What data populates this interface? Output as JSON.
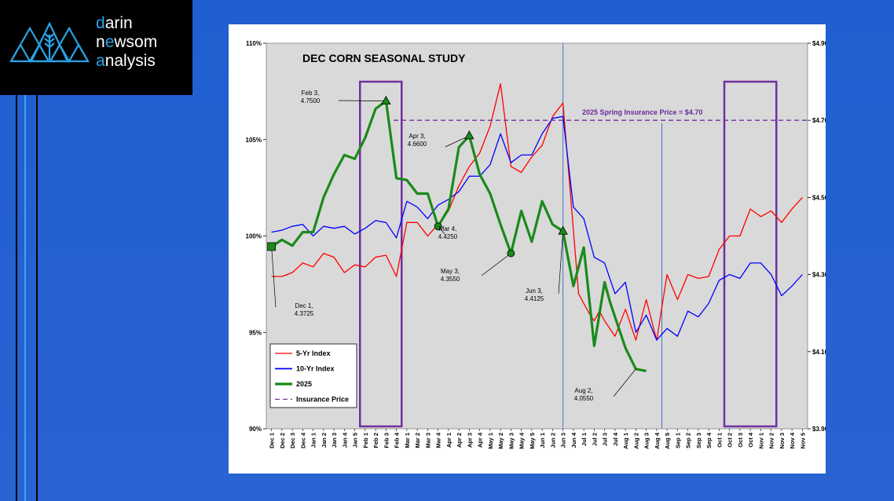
{
  "logo": {
    "line1_accent": "d",
    "line1_rest": "arin",
    "line2_start": "n",
    "line2_accent": "e",
    "line2_rest": "wsom",
    "line3_accent": "a",
    "line3_rest": "nalysis"
  },
  "colors": {
    "five_yr": "#ff0000",
    "ten_yr": "#0000ff",
    "y2025": "#1a8a1a",
    "insurance": "#7030a0",
    "plot_bg": "#d9d9d9",
    "background": "#2a63d2"
  },
  "chart_data": {
    "type": "line",
    "title": "DEC CORN SEASONAL STUDY",
    "x": [
      "Dec 1",
      "Dec 2",
      "Dec 3",
      "Dec 4",
      "Jan 1",
      "Jan 2",
      "Jan 3",
      "Jan 4",
      "Jan 5",
      "Feb 1",
      "Feb 2",
      "Feb 3",
      "Feb 4",
      "Mar 1",
      "Mar 2",
      "Mar 3",
      "Mar 4",
      "Apr 1",
      "Apr 2",
      "Apr 3",
      "Apr 4",
      "May 1",
      "May 2",
      "May 3",
      "May 4",
      "May 5",
      "Jun 1",
      "Jun 2",
      "Jun 3",
      "Jun 4",
      "Jul 1",
      "Jul 2",
      "Jul 3",
      "Jul 4",
      "Aug 1",
      "Aug 2",
      "Aug 3",
      "Aug 4",
      "Aug 5",
      "Sep 1",
      "Sep 2",
      "Sep 3",
      "Sep 4",
      "Oct 1",
      "Oct 2",
      "Oct 3",
      "Oct 4",
      "Nov 1",
      "Nov 2",
      "Nov 3",
      "Nov 4",
      "Nov 5"
    ],
    "left_axis": {
      "ticks": [
        "90%",
        "95%",
        "100%",
        "105%",
        "110%"
      ],
      "range": [
        90,
        110
      ]
    },
    "right_axis": {
      "ticks": [
        "$3.90",
        "$4.10",
        "$4.30",
        "$4.50",
        "$4.70",
        "$4.90"
      ],
      "range": [
        3.9,
        4.9
      ]
    },
    "series": [
      {
        "name": "5-Yr Index",
        "axis": "left",
        "color": "#ff0000",
        "points": [
          [
            0,
            97.9
          ],
          [
            1,
            97.9
          ],
          [
            2,
            98.1
          ],
          [
            3,
            98.6
          ],
          [
            4,
            98.4
          ],
          [
            5,
            99.1
          ],
          [
            6,
            98.9
          ],
          [
            7,
            98.1
          ],
          [
            8,
            98.5
          ],
          [
            9,
            98.4
          ],
          [
            10,
            98.9
          ],
          [
            11,
            99.0
          ],
          [
            12,
            97.9
          ],
          [
            13,
            100.7
          ],
          [
            14,
            100.7
          ],
          [
            15,
            100.0
          ],
          [
            16,
            100.6
          ],
          [
            17,
            101.3
          ],
          [
            18,
            102.6
          ],
          [
            19,
            103.6
          ],
          [
            20,
            104.3
          ],
          [
            21,
            105.7
          ],
          [
            22,
            107.9
          ],
          [
            23,
            103.6
          ],
          [
            24,
            103.3
          ],
          [
            25,
            104.1
          ],
          [
            26,
            104.7
          ],
          [
            27,
            106.2
          ],
          [
            28,
            106.9
          ],
          [
            29,
            100.3
          ],
          [
            29.5,
            97.0
          ],
          [
            30,
            96.5
          ],
          [
            30.5,
            96.0
          ],
          [
            31,
            95.6
          ],
          [
            31.5,
            96.1
          ],
          [
            32,
            95.6
          ],
          [
            33,
            94.8
          ],
          [
            34,
            96.2
          ],
          [
            35,
            94.6
          ],
          [
            36,
            96.7
          ],
          [
            37,
            94.6
          ],
          [
            38,
            98.0
          ],
          [
            39,
            96.7
          ],
          [
            40,
            98.0
          ],
          [
            41,
            97.8
          ],
          [
            42,
            97.9
          ],
          [
            43,
            99.3
          ],
          [
            44,
            100.0
          ],
          [
            45,
            100.0
          ],
          [
            46,
            101.4
          ],
          [
            47,
            101.0
          ],
          [
            48,
            101.3
          ],
          [
            49,
            100.7
          ],
          [
            50,
            101.4
          ],
          [
            51,
            102.0
          ]
        ]
      },
      {
        "name": "10-Yr Index",
        "axis": "left",
        "color": "#0000ff",
        "points": [
          [
            0,
            100.2
          ],
          [
            1,
            100.3
          ],
          [
            2,
            100.5
          ],
          [
            3,
            100.6
          ],
          [
            4,
            100.0
          ],
          [
            5,
            100.5
          ],
          [
            6,
            100.4
          ],
          [
            7,
            100.5
          ],
          [
            8,
            100.1
          ],
          [
            9,
            100.4
          ],
          [
            10,
            100.8
          ],
          [
            11,
            100.7
          ],
          [
            12,
            99.9
          ],
          [
            13,
            101.8
          ],
          [
            14,
            101.5
          ],
          [
            15,
            100.9
          ],
          [
            16,
            101.6
          ],
          [
            17,
            101.9
          ],
          [
            18,
            102.3
          ],
          [
            19,
            103.1
          ],
          [
            20,
            103.1
          ],
          [
            21,
            103.7
          ],
          [
            22,
            105.3
          ],
          [
            23,
            103.8
          ],
          [
            24,
            104.2
          ],
          [
            25,
            104.2
          ],
          [
            26,
            105.3
          ],
          [
            27,
            106.1
          ],
          [
            28,
            106.2
          ],
          [
            29,
            101.5
          ],
          [
            30,
            100.9
          ],
          [
            31,
            98.9
          ],
          [
            32,
            98.6
          ],
          [
            33,
            97.0
          ],
          [
            34,
            97.6
          ],
          [
            35,
            95.0
          ],
          [
            36,
            95.9
          ],
          [
            37,
            94.6
          ],
          [
            38,
            95.2
          ],
          [
            39,
            94.8
          ],
          [
            40,
            96.1
          ],
          [
            41,
            95.8
          ],
          [
            42,
            96.5
          ],
          [
            43,
            97.7
          ],
          [
            44,
            98.0
          ],
          [
            45,
            97.8
          ],
          [
            46,
            98.6
          ],
          [
            47,
            98.6
          ],
          [
            48,
            98.0
          ],
          [
            49,
            96.9
          ],
          [
            50,
            97.4
          ],
          [
            51,
            98.0
          ]
        ]
      },
      {
        "name": "2025",
        "axis": "right",
        "color": "#1a8a1a",
        "points": [
          [
            0,
            4.3725
          ],
          [
            1,
            4.39
          ],
          [
            2,
            4.375
          ],
          [
            3,
            4.41
          ],
          [
            4,
            4.41
          ],
          [
            5,
            4.5
          ],
          [
            6,
            4.56
          ],
          [
            7,
            4.61
          ],
          [
            8,
            4.6
          ],
          [
            9,
            4.655
          ],
          [
            10,
            4.73
          ],
          [
            11,
            4.75
          ],
          [
            12,
            4.55
          ],
          [
            13,
            4.545
          ],
          [
            14,
            4.51
          ],
          [
            15,
            4.51
          ],
          [
            16,
            4.425
          ],
          [
            17,
            4.47
          ],
          [
            18,
            4.63
          ],
          [
            19,
            4.66
          ],
          [
            20,
            4.56
          ],
          [
            21,
            4.51
          ],
          [
            22,
            4.43
          ],
          [
            23,
            4.355
          ],
          [
            24,
            4.465
          ],
          [
            25,
            4.385
          ],
          [
            26,
            4.49
          ],
          [
            27,
            4.43
          ],
          [
            28,
            4.4125
          ],
          [
            29,
            4.27
          ],
          [
            30,
            4.37
          ],
          [
            31,
            4.115
          ],
          [
            32,
            4.28
          ],
          [
            32.5,
            4.23
          ],
          [
            33,
            4.19
          ],
          [
            34,
            4.11
          ],
          [
            35,
            4.055
          ],
          [
            36,
            4.05
          ]
        ]
      },
      {
        "name": "Insurance Price",
        "axis": "right",
        "color": "#7030a0",
        "style": "dashed",
        "value": 4.7
      }
    ],
    "markers": [
      {
        "x": 0,
        "value": 4.3725,
        "shape": "square",
        "label_line1": "Dec 1,",
        "label_line2": "4.3725"
      },
      {
        "x": 11,
        "value": 4.75,
        "shape": "triangle",
        "label_line1": "Feb 3,",
        "label_line2": "4.7500"
      },
      {
        "x": 16,
        "value": 4.425,
        "shape": "circle",
        "label_line1": "Mar 4,",
        "label_line2": "4.4250"
      },
      {
        "x": 19,
        "value": 4.66,
        "shape": "triangle",
        "label_line1": "Apr 3,",
        "label_line2": "4.6600"
      },
      {
        "x": 23,
        "value": 4.355,
        "shape": "circle",
        "label_line1": "May 3,",
        "label_line2": "4.3550"
      },
      {
        "x": 28,
        "value": 4.4125,
        "shape": "triangle",
        "label_line1": "Jun 3,",
        "label_line2": "4.4125"
      },
      {
        "x": 35,
        "value": 4.055,
        "shape": "none",
        "label_line1": "Aug 2,",
        "label_line2": "4.0550"
      }
    ],
    "insurance_label": "2025 Spring Insurance Price = $4.70",
    "vertical_lines": [
      28,
      37.5
    ],
    "highlight_boxes": [
      [
        9,
        12
      ],
      [
        44,
        48
      ]
    ],
    "legend": {
      "position": "bottom-left",
      "entries": [
        "5-Yr Index",
        "10-Yr Index",
        "2025",
        "Insurance Price"
      ]
    },
    "grid": false
  }
}
